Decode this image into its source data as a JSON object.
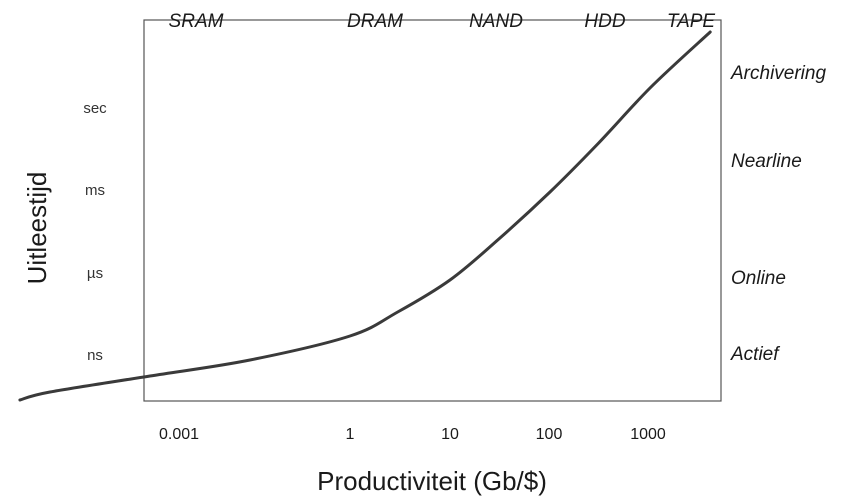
{
  "chart_data": {
    "type": "line",
    "xlabel": "Productiviteit (Gb/$)",
    "ylabel": "Uitleestijd",
    "x_scale": "log",
    "x_ticks": [
      "0.001",
      "1",
      "10",
      "100",
      "1000"
    ],
    "y_ticks": [
      "ns",
      "µs",
      "ms",
      "sec"
    ],
    "top_labels": [
      "SRAM",
      "DRAM",
      "NAND",
      "HDD",
      "TAPE"
    ],
    "right_labels": [
      "Archivering",
      "Nearline",
      "Online",
      "Actief"
    ],
    "grid": false,
    "legend": "none",
    "line_color": "#3a3a3a",
    "series": [
      {
        "x": [
          0.0005,
          0.001,
          0.01,
          0.1,
          1,
          3,
          10,
          30,
          100,
          300,
          1000,
          4000
        ],
        "y": [
          0.5,
          0.6,
          0.8,
          1.0,
          1.3,
          1.6,
          2.0,
          2.5,
          3.1,
          3.7,
          4.4,
          5.1
        ]
      }
    ]
  }
}
